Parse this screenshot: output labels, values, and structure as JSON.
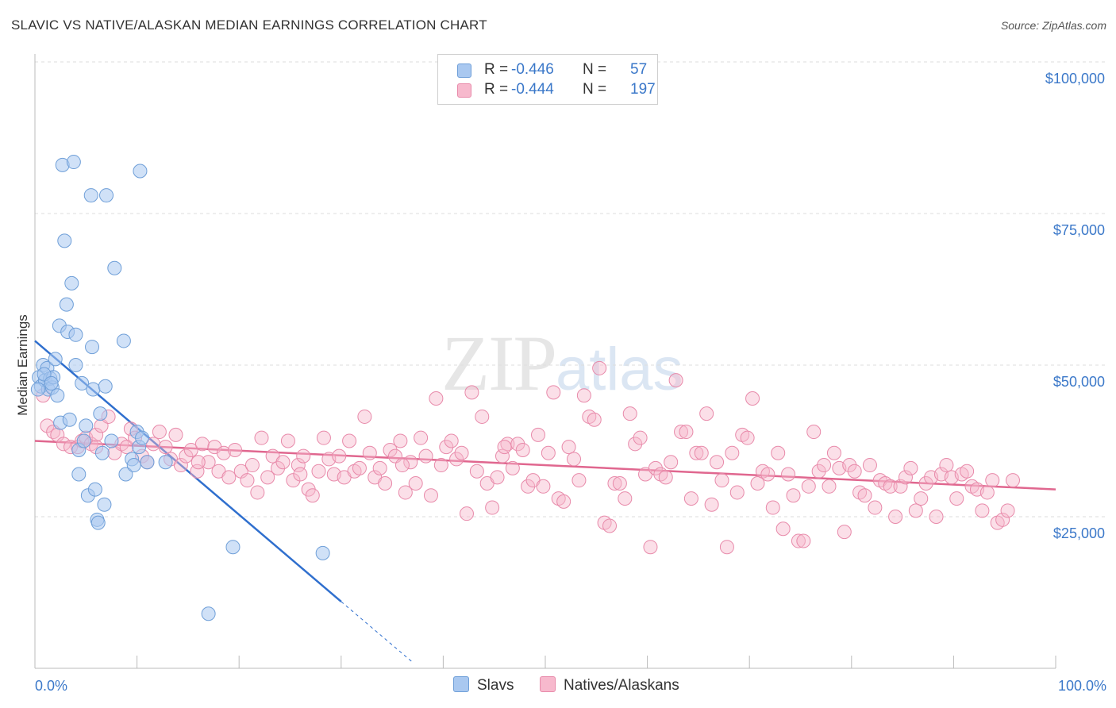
{
  "title": "SLAVIC VS NATIVE/ALASKAN MEDIAN EARNINGS CORRELATION CHART",
  "source": "Source: ZipAtlas.com",
  "watermark": {
    "zip": "ZIP",
    "atlas": "atlas"
  },
  "colors": {
    "slavs_fill": "#a9c8f0",
    "slavs_stroke": "#6f9fd8",
    "slavs_line": "#2f6fce",
    "natives_fill": "#f7b9cd",
    "natives_stroke": "#e88aaa",
    "natives_line": "#e0678f",
    "axis_text": "#3b78c9",
    "grid": "#dddddd"
  },
  "legend": {
    "rows": [
      {
        "r_label": "R =",
        "r_value": "-0.446",
        "n_label": "N =",
        "n_value": "57"
      },
      {
        "r_label": "R =",
        "r_value": "-0.444",
        "n_label": "N =",
        "n_value": "197"
      }
    ]
  },
  "bottom_legend": {
    "slavs": "Slavs",
    "natives": "Natives/Alaskans"
  },
  "chart_data": {
    "type": "scatter",
    "title": "SLAVIC VS NATIVE/ALASKAN MEDIAN EARNINGS CORRELATION CHART",
    "xlabel": "",
    "ylabel": "Median Earnings",
    "xlim": [
      0,
      100
    ],
    "ylim": [
      0,
      100000
    ],
    "x_tick_labels": [
      "0.0%",
      "100.0%"
    ],
    "y_ticks": [
      25000,
      50000,
      75000,
      100000
    ],
    "y_tick_labels": [
      "$25,000",
      "$50,000",
      "$75,000",
      "$100,000"
    ],
    "grid": true,
    "legend_position": "top-center",
    "series": [
      {
        "name": "Slavs",
        "R": -0.446,
        "N": 57,
        "trend": {
          "x": [
            0,
            30
          ],
          "y": [
            54000,
            11000
          ],
          "dashed_to": [
            37,
            1000
          ]
        },
        "points": [
          [
            0.4,
            48000
          ],
          [
            0.6,
            46500
          ],
          [
            0.8,
            50000
          ],
          [
            1.0,
            47500
          ],
          [
            1.2,
            49500
          ],
          [
            1.3,
            46000
          ],
          [
            1.5,
            47800
          ],
          [
            1.7,
            46300
          ],
          [
            1.8,
            48000
          ],
          [
            2.0,
            51000
          ],
          [
            2.2,
            45000
          ],
          [
            2.4,
            56500
          ],
          [
            2.5,
            40500
          ],
          [
            2.7,
            83000
          ],
          [
            2.9,
            70500
          ],
          [
            3.1,
            60000
          ],
          [
            3.2,
            55500
          ],
          [
            3.4,
            41000
          ],
          [
            3.6,
            63500
          ],
          [
            3.8,
            83500
          ],
          [
            4.0,
            55000
          ],
          [
            4.0,
            50000
          ],
          [
            4.3,
            36000
          ],
          [
            4.3,
            32000
          ],
          [
            4.6,
            47000
          ],
          [
            4.8,
            37500
          ],
          [
            5.0,
            40000
          ],
          [
            5.2,
            28500
          ],
          [
            5.5,
            78000
          ],
          [
            5.6,
            53000
          ],
          [
            5.7,
            46000
          ],
          [
            5.9,
            29500
          ],
          [
            6.1,
            24500
          ],
          [
            6.2,
            24000
          ],
          [
            6.4,
            42000
          ],
          [
            6.6,
            35500
          ],
          [
            6.8,
            27000
          ],
          [
            6.9,
            46500
          ],
          [
            7.0,
            78000
          ],
          [
            7.5,
            37500
          ],
          [
            7.8,
            66000
          ],
          [
            8.7,
            54000
          ],
          [
            8.9,
            32000
          ],
          [
            9.5,
            34500
          ],
          [
            9.7,
            33500
          ],
          [
            10.0,
            39000
          ],
          [
            10.2,
            36500
          ],
          [
            10.3,
            82000
          ],
          [
            10.5,
            38000
          ],
          [
            11.0,
            34000
          ],
          [
            12.8,
            34000
          ],
          [
            19.4,
            20000
          ],
          [
            17.0,
            9000
          ],
          [
            28.2,
            19000
          ],
          [
            0.3,
            46000
          ],
          [
            0.9,
            48500
          ],
          [
            1.6,
            47000
          ]
        ]
      },
      {
        "name": "Natives/Alaskans",
        "R": -0.444,
        "N": 197,
        "trend": {
          "x": [
            0,
            100
          ],
          "y": [
            37500,
            29500
          ]
        },
        "points": [
          [
            0.8,
            45000
          ],
          [
            1.2,
            40000
          ],
          [
            1.8,
            39000
          ],
          [
            2.2,
            38500
          ],
          [
            2.8,
            37000
          ],
          [
            3.5,
            36500
          ],
          [
            4.2,
            36500
          ],
          [
            4.6,
            37500
          ],
          [
            5.0,
            38000
          ],
          [
            5.5,
            37000
          ],
          [
            6.0,
            38500
          ],
          [
            6.5,
            40000
          ],
          [
            7.2,
            41500
          ],
          [
            7.8,
            35500
          ],
          [
            8.5,
            37000
          ],
          [
            9.0,
            36500
          ],
          [
            9.4,
            39500
          ],
          [
            9.8,
            38000
          ],
          [
            10.5,
            35000
          ],
          [
            11.0,
            34000
          ],
          [
            11.6,
            37000
          ],
          [
            12.2,
            39000
          ],
          [
            12.8,
            36500
          ],
          [
            13.3,
            34500
          ],
          [
            13.8,
            38500
          ],
          [
            14.3,
            33500
          ],
          [
            14.8,
            35000
          ],
          [
            15.3,
            36000
          ],
          [
            15.9,
            32500
          ],
          [
            16.4,
            37000
          ],
          [
            17.0,
            34000
          ],
          [
            17.6,
            36500
          ],
          [
            18.0,
            32500
          ],
          [
            18.5,
            35500
          ],
          [
            19.0,
            31500
          ],
          [
            19.6,
            36000
          ],
          [
            20.2,
            32500
          ],
          [
            20.8,
            31000
          ],
          [
            21.3,
            33500
          ],
          [
            21.8,
            29000
          ],
          [
            22.2,
            38000
          ],
          [
            22.8,
            31500
          ],
          [
            23.3,
            35000
          ],
          [
            23.8,
            33000
          ],
          [
            24.3,
            34000
          ],
          [
            24.8,
            37500
          ],
          [
            25.3,
            31000
          ],
          [
            25.8,
            33500
          ],
          [
            26.3,
            35000
          ],
          [
            26.8,
            29500
          ],
          [
            27.2,
            28500
          ],
          [
            27.8,
            32500
          ],
          [
            28.3,
            38000
          ],
          [
            28.8,
            34500
          ],
          [
            29.3,
            32000
          ],
          [
            29.8,
            35000
          ],
          [
            30.3,
            31500
          ],
          [
            30.8,
            37500
          ],
          [
            31.3,
            32500
          ],
          [
            31.8,
            33000
          ],
          [
            32.3,
            41500
          ],
          [
            32.8,
            35500
          ],
          [
            33.3,
            31500
          ],
          [
            33.8,
            33000
          ],
          [
            34.3,
            30500
          ],
          [
            34.8,
            36000
          ],
          [
            35.3,
            35000
          ],
          [
            35.8,
            37500
          ],
          [
            36.3,
            29000
          ],
          [
            36.8,
            34000
          ],
          [
            37.3,
            30500
          ],
          [
            37.8,
            38000
          ],
          [
            38.3,
            35000
          ],
          [
            38.8,
            28500
          ],
          [
            39.3,
            44500
          ],
          [
            39.8,
            33500
          ],
          [
            40.3,
            36500
          ],
          [
            40.8,
            37500
          ],
          [
            41.3,
            34500
          ],
          [
            41.8,
            35500
          ],
          [
            42.3,
            25500
          ],
          [
            42.8,
            45500
          ],
          [
            43.3,
            32500
          ],
          [
            43.8,
            41500
          ],
          [
            44.3,
            30500
          ],
          [
            44.8,
            26500
          ],
          [
            45.3,
            31500
          ],
          [
            45.8,
            35000
          ],
          [
            46.3,
            37000
          ],
          [
            46.8,
            33000
          ],
          [
            47.3,
            37000
          ],
          [
            47.8,
            36000
          ],
          [
            48.3,
            30000
          ],
          [
            48.8,
            31000
          ],
          [
            49.3,
            38500
          ],
          [
            49.8,
            30000
          ],
          [
            50.3,
            35500
          ],
          [
            50.8,
            45500
          ],
          [
            51.3,
            28000
          ],
          [
            51.8,
            27500
          ],
          [
            52.3,
            36500
          ],
          [
            52.8,
            34500
          ],
          [
            53.3,
            31000
          ],
          [
            53.8,
            45000
          ],
          [
            54.3,
            41500
          ],
          [
            54.8,
            41000
          ],
          [
            55.3,
            49500
          ],
          [
            55.8,
            24000
          ],
          [
            56.3,
            23500
          ],
          [
            56.8,
            30500
          ],
          [
            57.3,
            30500
          ],
          [
            57.8,
            28000
          ],
          [
            58.3,
            42000
          ],
          [
            58.8,
            37000
          ],
          [
            59.3,
            38000
          ],
          [
            59.8,
            32000
          ],
          [
            60.3,
            20000
          ],
          [
            60.8,
            33000
          ],
          [
            61.3,
            32000
          ],
          [
            61.8,
            31500
          ],
          [
            62.3,
            34000
          ],
          [
            62.8,
            47500
          ],
          [
            63.3,
            39000
          ],
          [
            63.8,
            39000
          ],
          [
            64.3,
            28000
          ],
          [
            64.8,
            35500
          ],
          [
            65.3,
            35500
          ],
          [
            65.8,
            42000
          ],
          [
            66.3,
            27000
          ],
          [
            66.8,
            34000
          ],
          [
            67.3,
            31000
          ],
          [
            67.8,
            20000
          ],
          [
            68.3,
            35500
          ],
          [
            68.8,
            29000
          ],
          [
            69.3,
            38500
          ],
          [
            69.8,
            38000
          ],
          [
            70.3,
            44500
          ],
          [
            70.8,
            30500
          ],
          [
            71.3,
            32500
          ],
          [
            71.8,
            32000
          ],
          [
            72.3,
            26500
          ],
          [
            72.8,
            35500
          ],
          [
            73.3,
            23000
          ],
          [
            73.8,
            32000
          ],
          [
            74.3,
            28500
          ],
          [
            74.8,
            21000
          ],
          [
            75.3,
            21000
          ],
          [
            75.8,
            30000
          ],
          [
            76.3,
            39000
          ],
          [
            76.8,
            32500
          ],
          [
            77.3,
            33500
          ],
          [
            77.8,
            30000
          ],
          [
            78.3,
            35500
          ],
          [
            78.8,
            33000
          ],
          [
            79.3,
            22500
          ],
          [
            79.8,
            33500
          ],
          [
            80.3,
            32500
          ],
          [
            80.8,
            29000
          ],
          [
            81.3,
            28500
          ],
          [
            81.8,
            33500
          ],
          [
            82.3,
            26500
          ],
          [
            82.8,
            31000
          ],
          [
            83.3,
            30500
          ],
          [
            83.8,
            30000
          ],
          [
            84.3,
            25000
          ],
          [
            84.8,
            30000
          ],
          [
            85.3,
            31500
          ],
          [
            85.8,
            33000
          ],
          [
            86.3,
            26000
          ],
          [
            86.8,
            28000
          ],
          [
            87.3,
            30500
          ],
          [
            87.8,
            31500
          ],
          [
            88.3,
            25000
          ],
          [
            88.8,
            32000
          ],
          [
            89.3,
            33500
          ],
          [
            89.8,
            31500
          ],
          [
            90.3,
            28000
          ],
          [
            90.8,
            32000
          ],
          [
            91.3,
            32500
          ],
          [
            91.8,
            30000
          ],
          [
            92.3,
            29500
          ],
          [
            92.8,
            26000
          ],
          [
            93.3,
            29000
          ],
          [
            93.8,
            31000
          ],
          [
            94.3,
            24000
          ],
          [
            94.8,
            24500
          ],
          [
            95.3,
            26000
          ],
          [
            95.8,
            31000
          ],
          [
            46.0,
            36500
          ],
          [
            36.0,
            33500
          ],
          [
            26.0,
            32000
          ],
          [
            16.0,
            34000
          ],
          [
            6.0,
            36500
          ]
        ]
      }
    ]
  }
}
